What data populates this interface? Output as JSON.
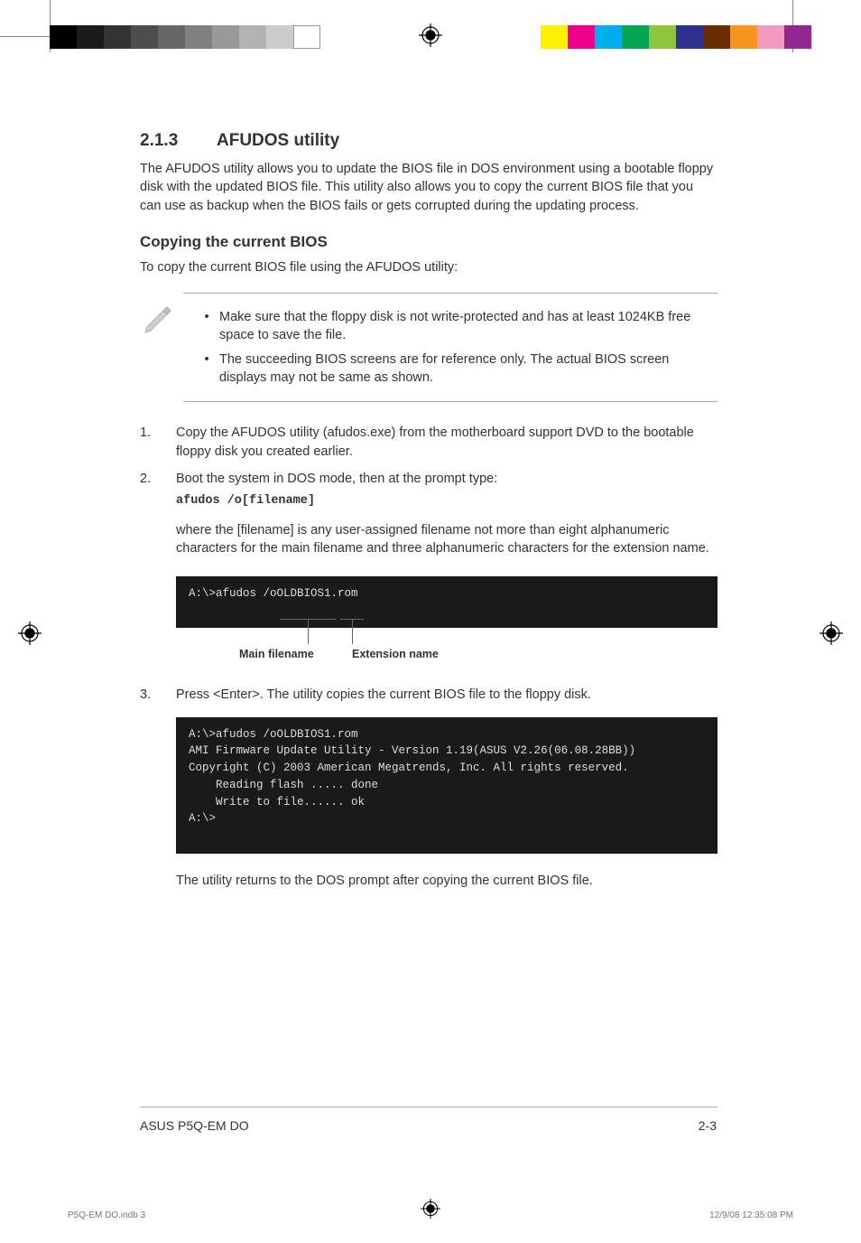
{
  "print_marks": {
    "left_gray_swatches": [
      "#000000",
      "#1a1a1a",
      "#333333",
      "#4d4d4d",
      "#666666",
      "#808080",
      "#999999",
      "#b3b3b3",
      "#cccccc",
      "#ffffff"
    ],
    "right_color_swatches": [
      "#fff200",
      "#ec008c",
      "#00aeef",
      "#00a651",
      "#8dc63e",
      "#2e3192",
      "#692d00",
      "#f7941d",
      "#f49ac1",
      "#92278f"
    ]
  },
  "section": {
    "number": "2.1.3",
    "title": "AFUDOS utility",
    "intro": "The AFUDOS utility allows you to update the BIOS file in DOS environment using a bootable floppy disk with the updated BIOS file. This utility also allows you to copy the current BIOS file that you can use as backup when the BIOS fails or gets corrupted during the updating process."
  },
  "subsection": {
    "title": "Copying the current BIOS",
    "intro": "To copy the current BIOS file using the AFUDOS utility:"
  },
  "notes": [
    "Make sure that the floppy disk is not write-protected and has at least 1024KB free space to save the file.",
    "The succeeding BIOS screens are for reference only. The actual BIOS screen displays may not be same as shown."
  ],
  "steps": {
    "s1": {
      "num": "1.",
      "text": "Copy the AFUDOS utility (afudos.exe) from the motherboard support DVD to the bootable floppy disk you created earlier."
    },
    "s2": {
      "num": "2.",
      "text": "Boot the system in DOS mode, then at the prompt type:",
      "cmd": "afudos /o[filename]",
      "after": "where the [filename] is any user-assigned filename not more than eight alphanumeric characters  for the main filename and three alphanumeric characters for the extension name."
    },
    "s3": {
      "num": "3.",
      "text": "Press <Enter>. The utility copies the current BIOS file to the floppy disk."
    }
  },
  "terminal1": {
    "prompt": "A:\\>afudos /oOLDBIOS1.rom",
    "annot_main": "Main filename",
    "annot_ext": "Extension name"
  },
  "terminal2": {
    "lines": "A:\\>afudos /oOLDBIOS1.rom\nAMI Firmware Update Utility - Version 1.19(ASUS V2.26(06.08.28BB))\nCopyright (C) 2003 American Megatrends, Inc. All rights reserved.\n    Reading flash ..... done\n    Write to file...... ok\nA:\\>\n "
  },
  "closing": "The utility returns to the DOS prompt after copying the current BIOS file.",
  "footer": {
    "left": "ASUS P5Q-EM DO",
    "right": "2-3"
  },
  "print_footer": {
    "left": "P5Q-EM DO.indb   3",
    "right": "12/9/08   12:35:08 PM"
  }
}
